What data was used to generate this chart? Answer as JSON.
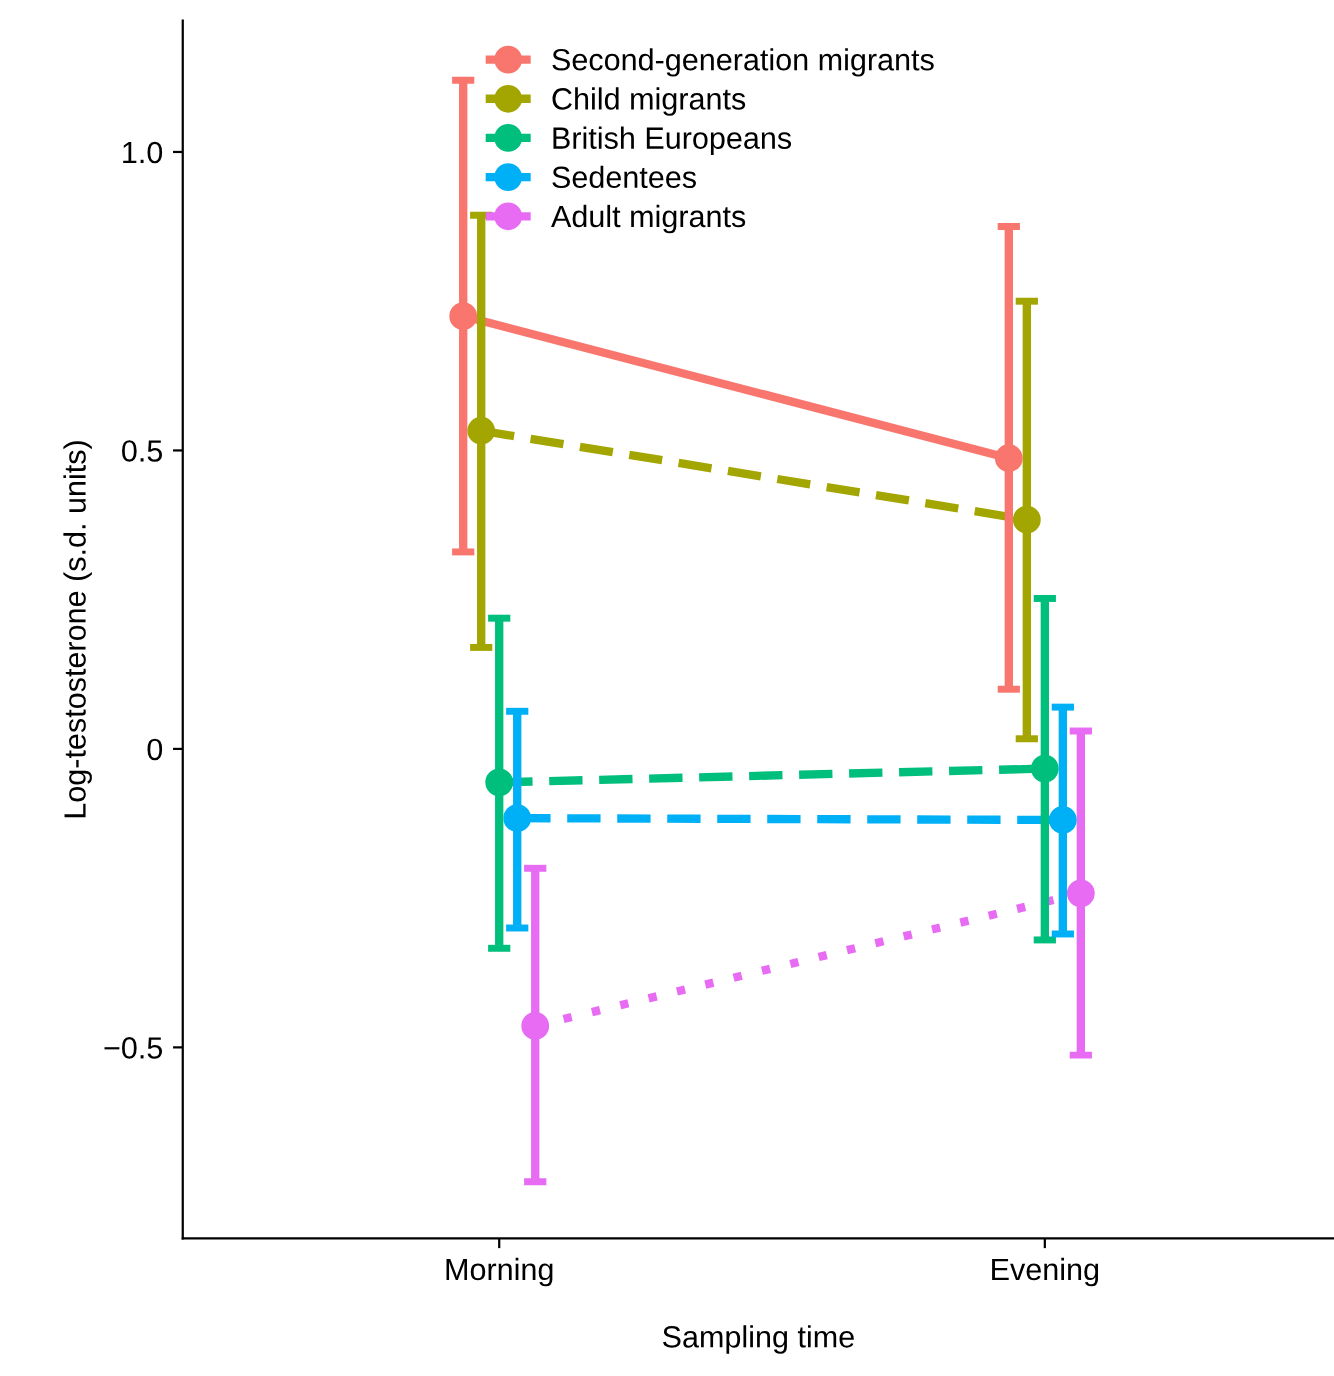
{
  "chart_data": {
    "type": "line",
    "xlabel": "Sampling time",
    "ylabel": "Log-testosterone (s.d. units)",
    "categories": [
      "Morning",
      "Evening"
    ],
    "series": [
      {
        "name": "Second-generation migrants",
        "color": "#f8766d",
        "line_style": "solid",
        "values": [
          0.725,
          0.487
        ],
        "errors": [
          [
            0.33,
            1.12
          ],
          [
            0.1,
            0.875
          ]
        ]
      },
      {
        "name": "Child migrants",
        "color": "#a3a500",
        "line_style": "dashed",
        "values": [
          0.533,
          0.384
        ],
        "errors": [
          [
            0.17,
            0.894
          ],
          [
            0.017,
            0.75
          ]
        ]
      },
      {
        "name": "British Europeans",
        "color": "#00bf7d",
        "line_style": "dashed",
        "values": [
          -0.056,
          -0.033
        ],
        "errors": [
          [
            -0.334,
            0.219
          ],
          [
            -0.32,
            0.252
          ]
        ]
      },
      {
        "name": "Sedentees",
        "color": "#00b0f6",
        "line_style": "dashed",
        "values": [
          -0.116,
          -0.119
        ],
        "errors": [
          [
            -0.3,
            0.063
          ],
          [
            -0.31,
            0.07
          ]
        ]
      },
      {
        "name": "Adult migrants",
        "color": "#e76bf3",
        "line_style": "dotted",
        "values": [
          -0.464,
          -0.242
        ],
        "errors": [
          [
            -0.725,
            -0.2
          ],
          [
            -0.513,
            0.03
          ]
        ]
      }
    ],
    "ylim": [
      -0.82,
      1.22
    ],
    "yticks": [
      {
        "value": -0.5,
        "label": "−0.5"
      },
      0,
      {
        "value": 0.5,
        "label": "0.5"
      },
      {
        "value": 1.0,
        "label": "1.0"
      }
    ],
    "marker": "circle",
    "grid": false,
    "legend": "top"
  }
}
